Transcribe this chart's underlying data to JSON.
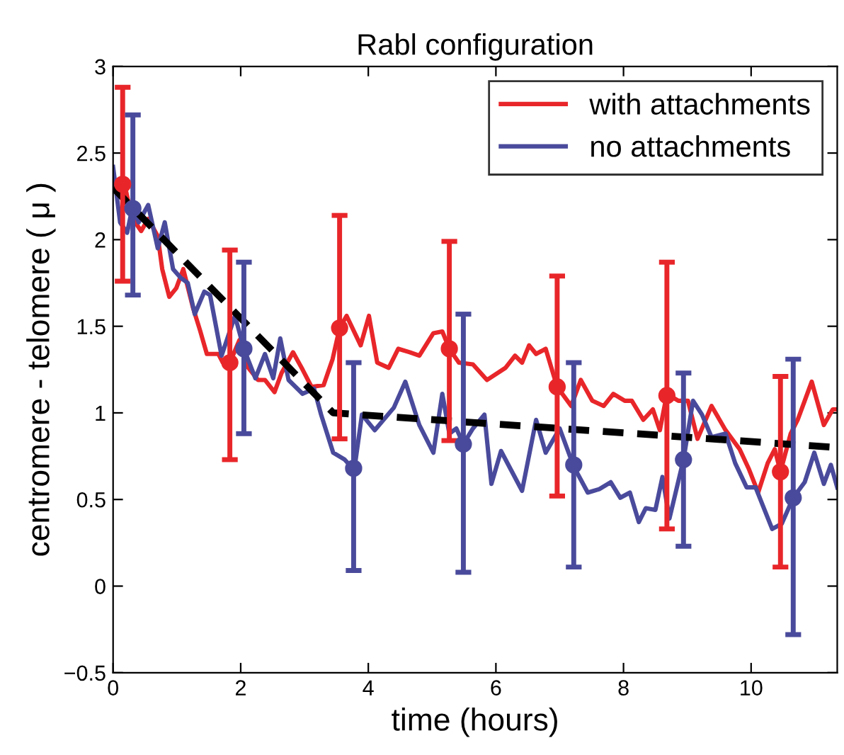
{
  "chart_data": {
    "type": "line",
    "title": "Rabl configuration",
    "xlabel": "time (hours)",
    "ylabel": "centromere - telomere ( μ )",
    "xlim": [
      0,
      11.35
    ],
    "ylim": [
      -0.5,
      3
    ],
    "xticks": [
      0,
      2,
      4,
      6,
      8,
      10
    ],
    "yticks": [
      {
        "value": -0.5,
        "label": "−0.5"
      },
      0,
      0.5,
      1,
      1.5,
      2,
      2.5,
      3
    ],
    "legend": "top right",
    "grid": false,
    "line_style": "solid",
    "series": [
      {
        "name": "with attachments",
        "color": "#e8262a",
        "marker": "none",
        "x": [
          0,
          0.18,
          0.29,
          0.44,
          0.55,
          0.7,
          0.77,
          0.88,
          0.99,
          1.1,
          1.25,
          1.36,
          1.47,
          1.65,
          1.72,
          1.83,
          1.98,
          2.12,
          2.27,
          2.38,
          2.53,
          2.64,
          2.82,
          2.97,
          3.11,
          3.3,
          3.44,
          3.55,
          3.66,
          3.88,
          4.01,
          4.14,
          4.32,
          4.47,
          4.65,
          4.8,
          5.02,
          5.16,
          5.27,
          5.42,
          5.64,
          5.86,
          6.15,
          6.3,
          6.41,
          6.52,
          6.63,
          6.78,
          6.96,
          7.18,
          7.33,
          7.51,
          7.69,
          7.84,
          8.02,
          8.13,
          8.31,
          8.46,
          8.57,
          8.68,
          8.86,
          9.01,
          9.16,
          9.38,
          9.6,
          9.82,
          9.96,
          10.11,
          10.26,
          10.37,
          10.46,
          10.62,
          10.73,
          10.84,
          10.95,
          11.14,
          11.28,
          11.35
        ],
        "values": [
          2.34,
          2.32,
          2.13,
          2.05,
          2.12,
          2.02,
          1.83,
          1.67,
          1.72,
          1.83,
          1.61,
          1.48,
          1.34,
          1.34,
          1.29,
          1.29,
          1.42,
          1.26,
          1.19,
          1.19,
          1.12,
          1.23,
          1.35,
          1.25,
          1.15,
          1.16,
          1.31,
          1.49,
          1.56,
          1.39,
          1.56,
          1.29,
          1.26,
          1.37,
          1.35,
          1.33,
          1.46,
          1.47,
          1.37,
          1.29,
          1.28,
          1.19,
          1.26,
          1.33,
          1.29,
          1.39,
          1.34,
          1.37,
          1.15,
          1.04,
          1.19,
          1.07,
          1.04,
          1.11,
          1.07,
          1.07,
          0.96,
          1.02,
          0.9,
          1.11,
          1.07,
          1.07,
          0.85,
          1.04,
          0.9,
          0.79,
          0.68,
          0.54,
          0.71,
          0.79,
          0.66,
          0.88,
          0.96,
          1.07,
          1.18,
          0.93,
          1.02,
          1.02
        ]
      },
      {
        "name": "no attachments",
        "color": "#4a4a9c",
        "marker": "none",
        "x": [
          0,
          0.11,
          0.22,
          0.31,
          0.4,
          0.55,
          0.7,
          0.81,
          0.94,
          1.06,
          1.17,
          1.28,
          1.43,
          1.52,
          1.7,
          1.91,
          2.05,
          2.23,
          2.38,
          2.51,
          2.62,
          2.75,
          2.97,
          3.15,
          3.26,
          3.45,
          3.63,
          3.78,
          3.9,
          4.1,
          4.4,
          4.58,
          4.8,
          5.02,
          5.16,
          5.27,
          5.38,
          5.49,
          5.64,
          5.82,
          5.93,
          6.08,
          6.41,
          6.63,
          6.78,
          7.0,
          7.22,
          7.44,
          7.62,
          7.8,
          7.95,
          8.1,
          8.24,
          8.35,
          8.5,
          8.61,
          8.72,
          8.94,
          9.09,
          9.23,
          9.38,
          9.6,
          9.75,
          9.93,
          10.07,
          10.33,
          10.48,
          10.66,
          10.84,
          10.99,
          11.14,
          11.25,
          11.35
        ],
        "values": [
          2.42,
          2.1,
          2.04,
          2.2,
          2.1,
          2.2,
          1.95,
          2.1,
          1.83,
          1.78,
          1.75,
          1.57,
          1.7,
          1.68,
          1.33,
          1.56,
          1.37,
          1.2,
          1.34,
          1.2,
          1.43,
          1.19,
          1.11,
          1.14,
          0.99,
          0.77,
          0.73,
          0.67,
          0.99,
          0.9,
          1.03,
          1.18,
          0.93,
          0.77,
          1.11,
          0.88,
          0.91,
          0.82,
          0.91,
          0.99,
          0.59,
          0.78,
          0.55,
          0.96,
          0.77,
          0.91,
          0.69,
          0.54,
          0.56,
          0.6,
          0.51,
          0.54,
          0.37,
          0.45,
          0.44,
          0.63,
          0.39,
          0.73,
          1.07,
          0.99,
          0.86,
          0.88,
          0.71,
          0.57,
          0.57,
          0.33,
          0.36,
          0.51,
          0.6,
          0.77,
          0.59,
          0.7,
          0.57
        ]
      },
      {
        "color": "#e8262a",
        "type": "scatter",
        "marker": "circle",
        "x": [
          0.15,
          1.83,
          3.55,
          5.27,
          6.96,
          8.68,
          10.46
        ],
        "values": [
          2.32,
          1.29,
          1.49,
          1.37,
          1.15,
          1.1,
          0.66
        ],
        "errors": [
          [
            1.76,
            2.88
          ],
          [
            0.73,
            1.94
          ],
          [
            0.85,
            2.14
          ],
          [
            0.84,
            1.99
          ],
          [
            0.52,
            1.79
          ],
          [
            0.33,
            1.87
          ],
          [
            0.11,
            1.21
          ]
        ]
      },
      {
        "color": "#4a4a9c",
        "type": "scatter",
        "marker": "circle",
        "x": [
          0.31,
          2.05,
          3.77,
          5.49,
          7.22,
          8.94,
          10.66
        ],
        "values": [
          2.18,
          1.37,
          0.68,
          0.82,
          0.7,
          0.73,
          0.51
        ],
        "errors": [
          [
            1.68,
            2.72
          ],
          [
            0.88,
            1.87
          ],
          [
            0.09,
            1.29
          ],
          [
            0.08,
            1.57
          ],
          [
            0.11,
            1.29
          ],
          [
            0.23,
            1.23
          ],
          [
            -0.28,
            1.31
          ]
        ]
      },
      {
        "color": "#000000",
        "type": "line",
        "marker": "none",
        "line_style": "dashed",
        "x": [
          0,
          3.45,
          11.35
        ],
        "values": [
          2.3,
          1.0,
          0.8
        ]
      }
    ]
  }
}
